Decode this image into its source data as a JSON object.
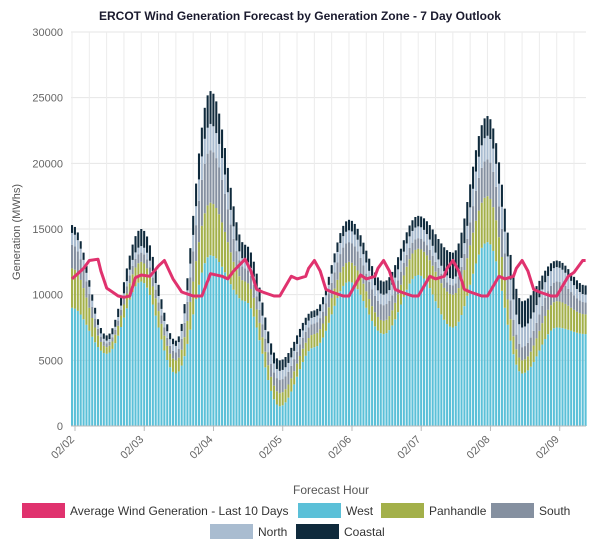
{
  "chart_data": {
    "type": "bar",
    "stacked": true,
    "title": "ERCOT Wind Generation Forecast by Generation Zone - 7 Day Outlook",
    "xlabel": "Forecast Hour",
    "ylabel": "Generation (MWhs)",
    "ylim": [
      0,
      30000
    ],
    "y_ticks": [
      0,
      5000,
      10000,
      15000,
      20000,
      25000,
      30000
    ],
    "grid": true,
    "x_tick_labels": [
      "02/02",
      "02/03",
      "02/04",
      "02/05",
      "02/06",
      "02/07",
      "02/08",
      "02/09"
    ],
    "hours_per_day": 24,
    "x_hour_anchors": [
      0,
      12,
      24,
      36,
      48,
      60,
      72,
      84,
      96,
      108,
      120,
      132,
      144,
      156,
      168,
      178
    ],
    "series": [
      {
        "name": "West",
        "color": "#5bc0d8",
        "anchor_values": [
          9000,
          5500,
          11000,
          4000,
          13000,
          9500,
          1500,
          6000,
          11000,
          7000,
          11500,
          7500,
          14000,
          4000,
          7500,
          7000
        ]
      },
      {
        "name": "Panhandle",
        "color": "#a3b04a",
        "anchor_values": [
          3000,
          500,
          1500,
          1000,
          4000,
          1500,
          1000,
          1000,
          1500,
          1000,
          2000,
          2500,
          3500,
          1000,
          2000,
          1500
        ]
      },
      {
        "name": "South",
        "color": "#8590a0",
        "anchor_values": [
          1800,
          300,
          700,
          600,
          4000,
          1000,
          1000,
          800,
          1500,
          1200,
          800,
          700,
          2800,
          1000,
          1500,
          900
        ]
      },
      {
        "name": "North",
        "color": "#a9bcd0",
        "anchor_values": [
          900,
          200,
          500,
          500,
          2000,
          600,
          700,
          500,
          900,
          800,
          900,
          500,
          1800,
          1500,
          1100,
          600
        ]
      },
      {
        "name": "Coastal",
        "color": "#0f2a3c",
        "anchor_values": [
          600,
          400,
          1300,
          400,
          2500,
          1200,
          800,
          500,
          800,
          1000,
          800,
          2000,
          1500,
          2000,
          500,
          700
        ]
      }
    ],
    "line_series": {
      "name": "Average Wind Generation - Last 10 Days",
      "color": "#e0326e",
      "x_hours": [
        0,
        4,
        6,
        9,
        10,
        12,
        14,
        16,
        18,
        20,
        22,
        24,
        27,
        30,
        32,
        35,
        38,
        42,
        45,
        48,
        52,
        54,
        56,
        60,
        62,
        64,
        66,
        70,
        72,
        76,
        78,
        81,
        82,
        84,
        86,
        88,
        90,
        94,
        96,
        100,
        102,
        105,
        106,
        108,
        110,
        112,
        114,
        118,
        120,
        124,
        126,
        129,
        130,
        132,
        134,
        136,
        138,
        142,
        144,
        148,
        150,
        153,
        154,
        156,
        158,
        160,
        162,
        166,
        168,
        172,
        174,
        177,
        178
      ],
      "values": [
        11200,
        12000,
        12600,
        12700,
        11800,
        10500,
        10200,
        9900,
        9800,
        9900,
        11300,
        11500,
        11400,
        12200,
        12600,
        11200,
        10200,
        9900,
        9900,
        11600,
        11400,
        11200,
        11800,
        12700,
        11800,
        10400,
        10200,
        9900,
        9900,
        11400,
        11200,
        11400,
        12000,
        12600,
        11800,
        10400,
        10200,
        9900,
        9900,
        11500,
        11200,
        11400,
        12000,
        12600,
        11800,
        10400,
        10200,
        9900,
        9900,
        11400,
        11200,
        11400,
        12000,
        12600,
        11800,
        10400,
        10200,
        9900,
        9900,
        11400,
        11200,
        11400,
        12000,
        12600,
        11800,
        10400,
        10200,
        9900,
        9900,
        11400,
        11700,
        12600,
        12600
      ]
    },
    "legend": {
      "title": "Forecast Hour",
      "position": "bottom",
      "rows": [
        [
          "Average Wind Generation - Last 10 Days",
          "West",
          "Panhandle",
          "South"
        ],
        [
          "North",
          "Coastal"
        ]
      ]
    }
  }
}
